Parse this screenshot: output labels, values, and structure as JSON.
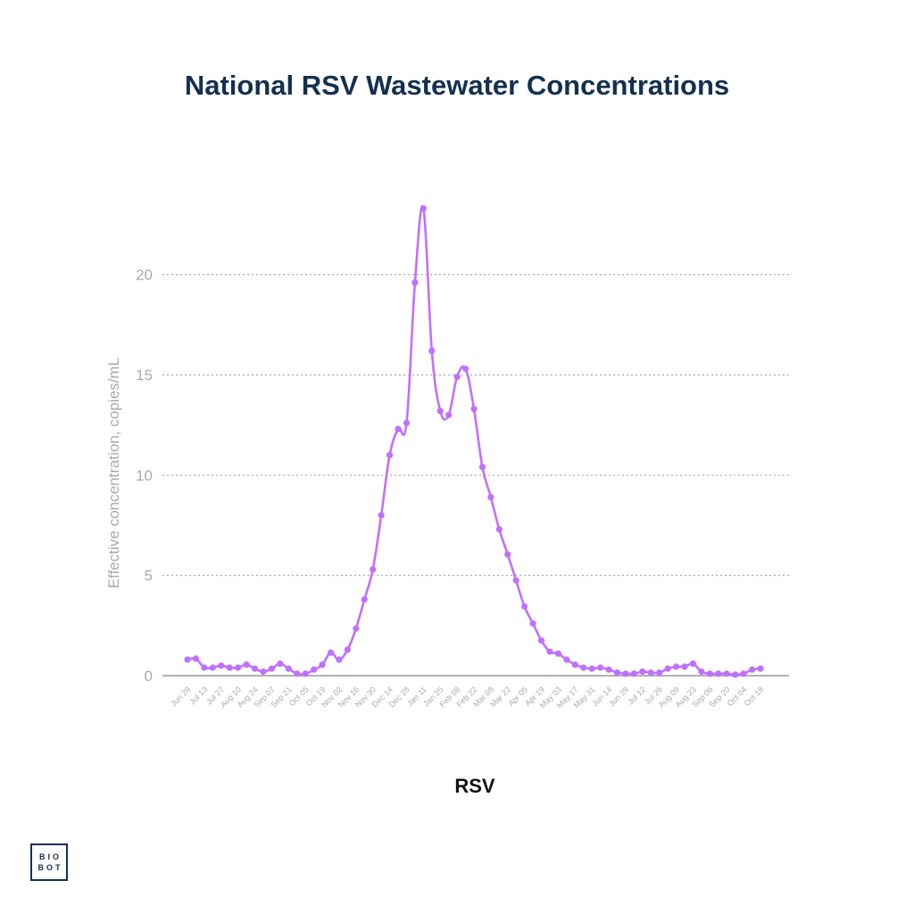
{
  "colors": {
    "series": "#c070ff",
    "title": "#14304f",
    "grid": "#aaaaaa",
    "axis": "#999999",
    "tick": "#aaaaaa"
  },
  "chart_data": {
    "type": "line",
    "title": "National RSV Wastewater Concentrations",
    "xlabel": "",
    "ylabel": "Effective concentration, copies/mL",
    "ylim": [
      0,
      23.5
    ],
    "yticks": [
      0,
      5,
      10,
      15,
      20
    ],
    "grid": true,
    "legend": "bottom",
    "xtick_labels": [
      "Jun 29",
      "Jul 13",
      "Jul 27",
      "Aug 10",
      "Aug 24",
      "Sep 07",
      "Sep 21",
      "Oct 05",
      "Oct 19",
      "Nov 02",
      "Nov 16",
      "Nov 30",
      "Dec 14",
      "Dec 28",
      "Jan 11",
      "Jan 25",
      "Feb 08",
      "Feb 22",
      "Mar 08",
      "Mar 22",
      "Apr 05",
      "Apr 19",
      "May 03",
      "May 17",
      "May 31",
      "Jun 14",
      "Jun 28",
      "Jul 12",
      "Jul 26",
      "Aug 09",
      "Aug 23",
      "Sep 06",
      "Sep 20",
      "Oct 04",
      "Oct 18"
    ],
    "series": [
      {
        "name": "RSV",
        "values": [
          0.8,
          0.85,
          0.4,
          0.4,
          0.5,
          0.4,
          0.4,
          0.55,
          0.35,
          0.2,
          0.35,
          0.6,
          0.35,
          0.1,
          0.1,
          0.3,
          0.55,
          1.15,
          0.8,
          1.3,
          2.35,
          3.8,
          5.3,
          8.0,
          11.0,
          12.3,
          12.6,
          19.6,
          23.3,
          16.2,
          13.2,
          13.0,
          14.9,
          15.3,
          13.3,
          10.4,
          8.9,
          7.3,
          6.05,
          4.75,
          3.45,
          2.6,
          1.75,
          1.2,
          1.1,
          0.8,
          0.55,
          0.4,
          0.35,
          0.4,
          0.3,
          0.15,
          0.1,
          0.1,
          0.2,
          0.15,
          0.15,
          0.35,
          0.45,
          0.45,
          0.6,
          0.2,
          0.1,
          0.1,
          0.1,
          0.05,
          0.1,
          0.3,
          0.35
        ]
      }
    ]
  }
}
